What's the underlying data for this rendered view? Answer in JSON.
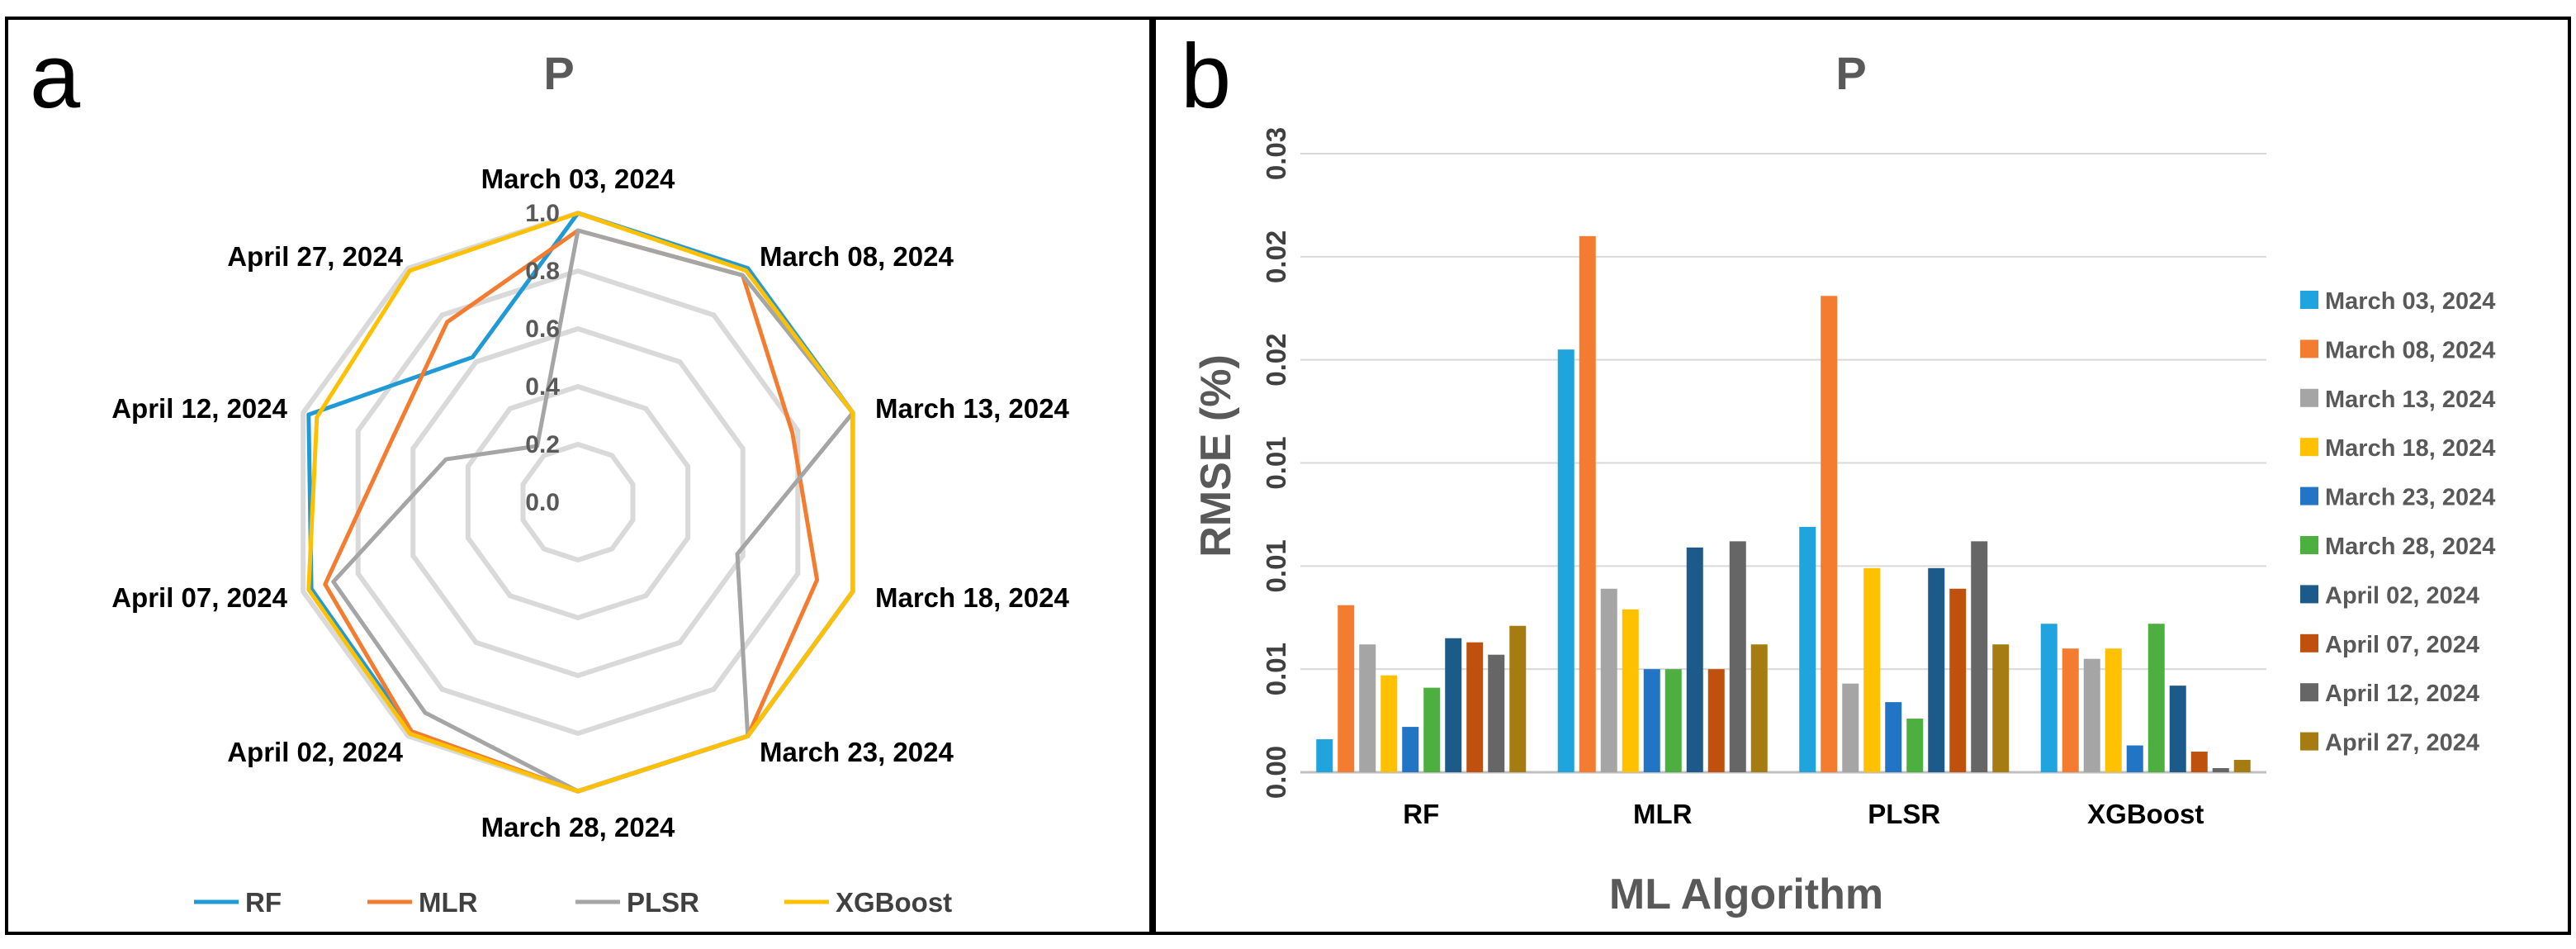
{
  "panels": {
    "a_letter": "a",
    "b_letter": "b"
  },
  "chart_data": [
    {
      "type": "radar",
      "panel": "a",
      "title": "P",
      "categories": [
        "March 03, 2024",
        "March 08, 2024",
        "March 13, 2024",
        "March 18, 2024",
        "March 23, 2024",
        "March 28, 2024",
        "April 02, 2024",
        "April 07, 2024",
        "April 12, 2024",
        "April 27, 2024"
      ],
      "rlim": [
        0,
        1.0
      ],
      "ring_ticks": [
        "0.0",
        "0.2",
        "0.4",
        "0.6",
        "0.8",
        "1.0"
      ],
      "legend_position": "bottom",
      "series": [
        {
          "name": "RF",
          "color": "#1F9AD6",
          "values": [
            1.0,
            1.0,
            1.0,
            1.0,
            1.0,
            1.0,
            0.98,
            0.97,
            0.98,
            0.62
          ]
        },
        {
          "name": "MLR",
          "color": "#F47C30",
          "values": [
            0.94,
            0.97,
            0.78,
            0.87,
            1.0,
            1.0,
            0.98,
            0.92,
            0.68,
            0.77
          ]
        },
        {
          "name": "PLSR",
          "color": "#A5A5A5",
          "values": [
            0.94,
            0.97,
            1.0,
            0.58,
            1.0,
            1.0,
            0.9,
            0.89,
            0.48,
            0.24
          ]
        },
        {
          "name": "XGBoost",
          "color": "#FFC000",
          "values": [
            1.0,
            0.99,
            1.0,
            1.0,
            1.0,
            1.0,
            0.99,
            0.98,
            0.95,
            0.99
          ]
        }
      ]
    },
    {
      "type": "bar",
      "panel": "b",
      "title": "P",
      "xlabel": "ML Algorithm",
      "ylabel": "RMSE (%)",
      "categories": [
        "RF",
        "MLR",
        "PLSR",
        "XGBoost"
      ],
      "ylim": [
        0,
        0.03
      ],
      "yticks": [
        0,
        0.005,
        0.01,
        0.015,
        0.02,
        0.025,
        0.03
      ],
      "ytick_labels": [
        "0.00",
        "0.01",
        "0.01",
        "0.01",
        "0.02",
        "0.02",
        "0.03"
      ],
      "grid": true,
      "legend_position": "right",
      "series": [
        {
          "name": "March 03, 2024",
          "color": "#1FA4DD",
          "values": [
            0.0016,
            0.0205,
            0.0119,
            0.0072
          ]
        },
        {
          "name": "March 08, 2024",
          "color": "#F47C30",
          "values": [
            0.0081,
            0.026,
            0.0231,
            0.006
          ]
        },
        {
          "name": "March 13, 2024",
          "color": "#A5A5A5",
          "values": [
            0.0062,
            0.0089,
            0.0043,
            0.0055
          ]
        },
        {
          "name": "March 18, 2024",
          "color": "#FFC000",
          "values": [
            0.0047,
            0.0079,
            0.0099,
            0.006
          ]
        },
        {
          "name": "March 23, 2024",
          "color": "#2274C4",
          "values": [
            0.0022,
            0.005,
            0.0034,
            0.0013
          ]
        },
        {
          "name": "March 28, 2024",
          "color": "#4CAF3F",
          "values": [
            0.0041,
            0.005,
            0.0026,
            0.0072
          ]
        },
        {
          "name": "April 02, 2024",
          "color": "#1C5A8A",
          "values": [
            0.0065,
            0.0109,
            0.0099,
            0.0042
          ]
        },
        {
          "name": "April 07, 2024",
          "color": "#C0500E",
          "values": [
            0.0063,
            0.005,
            0.0089,
            0.001
          ]
        },
        {
          "name": "April 12, 2024",
          "color": "#666666",
          "values": [
            0.0057,
            0.0112,
            0.0112,
            0.0002
          ]
        },
        {
          "name": "April 27, 2024",
          "color": "#A57C12",
          "values": [
            0.0071,
            0.0062,
            0.0062,
            0.0006
          ]
        }
      ]
    }
  ]
}
